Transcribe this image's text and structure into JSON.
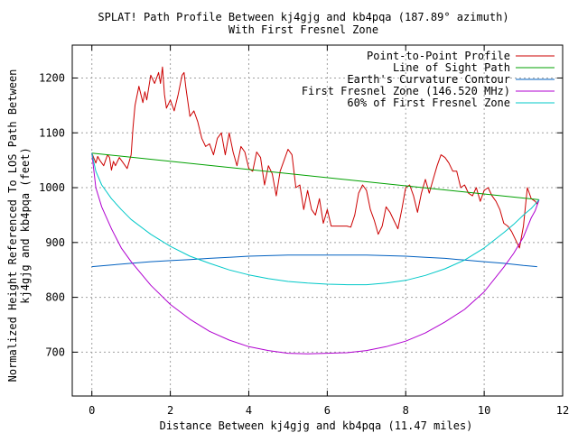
{
  "chart_data": {
    "type": "line",
    "title": "SPLAT! Path Profile Between kj4gjg and kb4pqa (187.89° azimuth)",
    "subtitle": "With First Fresnel Zone",
    "xlabel": "Distance Between kj4gjg and kb4pqa (11.47 miles)",
    "ylabel_line1": "Normalized Height Referenced To LOS Path Between",
    "ylabel_line2": "kj4gjg and kb4pqa (feet)",
    "xlim": [
      -0.5,
      12
    ],
    "ylim": [
      620,
      1260
    ],
    "x_ticks": [
      0,
      2,
      4,
      6,
      8,
      10,
      12
    ],
    "y_ticks": [
      700,
      800,
      900,
      1000,
      1100,
      1200
    ],
    "grid": true,
    "legend_position": "top-right",
    "series": [
      {
        "name": "Point-to-Point Profile",
        "color": "#cc0000",
        "x": [
          0,
          0.1,
          0.15,
          0.2,
          0.3,
          0.4,
          0.45,
          0.5,
          0.55,
          0.6,
          0.7,
          0.8,
          0.9,
          1.0,
          1.05,
          1.1,
          1.2,
          1.3,
          1.35,
          1.4,
          1.5,
          1.6,
          1.7,
          1.75,
          1.8,
          1.85,
          1.9,
          2.0,
          2.1,
          2.2,
          2.3,
          2.35,
          2.4,
          2.5,
          2.6,
          2.7,
          2.8,
          2.9,
          3.0,
          3.1,
          3.2,
          3.3,
          3.4,
          3.5,
          3.6,
          3.7,
          3.8,
          3.9,
          4.0,
          4.1,
          4.2,
          4.3,
          4.4,
          4.5,
          4.6,
          4.7,
          4.8,
          4.9,
          5.0,
          5.1,
          5.2,
          5.3,
          5.4,
          5.5,
          5.6,
          5.7,
          5.8,
          5.9,
          6.0,
          6.1,
          6.2,
          6.3,
          6.4,
          6.5,
          6.6,
          6.7,
          6.8,
          6.9,
          7.0,
          7.1,
          7.2,
          7.3,
          7.4,
          7.5,
          7.6,
          7.7,
          7.8,
          7.9,
          8.0,
          8.1,
          8.2,
          8.3,
          8.4,
          8.5,
          8.6,
          8.7,
          8.8,
          8.9,
          9.0,
          9.1,
          9.2,
          9.3,
          9.4,
          9.5,
          9.6,
          9.7,
          9.8,
          9.9,
          10.0,
          10.1,
          10.2,
          10.3,
          10.4,
          10.5,
          10.6,
          10.7,
          10.8,
          10.9,
          11.0,
          11.1,
          11.2,
          11.3,
          11.35,
          11.4
        ],
        "values": [
          1063,
          1045,
          1057,
          1050,
          1040,
          1060,
          1055,
          1032,
          1048,
          1040,
          1055,
          1045,
          1035,
          1060,
          1110,
          1150,
          1185,
          1155,
          1175,
          1160,
          1205,
          1190,
          1210,
          1190,
          1220,
          1170,
          1145,
          1160,
          1140,
          1170,
          1205,
          1210,
          1180,
          1130,
          1140,
          1120,
          1090,
          1075,
          1080,
          1060,
          1090,
          1100,
          1060,
          1100,
          1065,
          1040,
          1075,
          1065,
          1035,
          1030,
          1065,
          1055,
          1005,
          1040,
          1025,
          985,
          1030,
          1050,
          1070,
          1060,
          1000,
          1005,
          960,
          995,
          960,
          950,
          980,
          935,
          960,
          930,
          930,
          930,
          930,
          930,
          928,
          950,
          990,
          1005,
          995,
          960,
          940,
          915,
          930,
          965,
          955,
          940,
          925,
          960,
          1000,
          1005,
          985,
          955,
          990,
          1015,
          990,
          1015,
          1040,
          1060,
          1055,
          1045,
          1030,
          1030,
          1000,
          1005,
          990,
          985,
          1000,
          975,
          995,
          1000,
          985,
          975,
          960,
          935,
          930,
          920,
          905,
          890,
          930,
          1000,
          980,
          975,
          970,
          978
        ]
      },
      {
        "name": "Line of Sight Path",
        "color": "#00a000",
        "x": [
          0,
          11.4
        ],
        "values": [
          1063,
          978
        ]
      },
      {
        "name": "Earth's Curvature Contour",
        "color": "#0060c0",
        "x": [
          0,
          0.5,
          1.0,
          1.5,
          2.0,
          2.5,
          3.0,
          3.5,
          4.0,
          4.5,
          5.0,
          5.5,
          6.0,
          6.5,
          7.0,
          7.5,
          8.0,
          8.5,
          9.0,
          9.5,
          10.0,
          10.5,
          11.0,
          11.35
        ],
        "values": [
          856,
          859,
          862,
          865,
          867,
          869,
          871,
          873,
          875,
          876,
          877,
          877,
          877,
          877,
          877,
          876,
          875,
          873,
          871,
          868,
          865,
          862,
          858,
          856
        ]
      },
      {
        "name": "First Fresnel Zone (146.520 MHz)",
        "color": "#b000d0",
        "x": [
          0,
          0.1,
          0.25,
          0.5,
          0.75,
          1.0,
          1.5,
          2.0,
          2.5,
          3.0,
          3.5,
          4.0,
          4.5,
          5.0,
          5.5,
          6.0,
          6.5,
          7.0,
          7.5,
          8.0,
          8.5,
          9.0,
          9.5,
          10.0,
          10.5,
          10.75,
          11.0,
          11.2,
          11.3,
          11.4
        ],
        "values": [
          1063,
          1000,
          965,
          925,
          890,
          865,
          822,
          787,
          760,
          738,
          722,
          710,
          703,
          698,
          697,
          698,
          699,
          703,
          710,
          720,
          735,
          755,
          778,
          810,
          855,
          880,
          910,
          945,
          958,
          978
        ]
      },
      {
        "name": "60% of First Fresnel Zone",
        "color": "#00c8c8",
        "x": [
          0,
          0.1,
          0.25,
          0.5,
          0.75,
          1.0,
          1.5,
          2.0,
          2.5,
          3.0,
          3.5,
          4.0,
          4.5,
          5.0,
          5.5,
          6.0,
          6.5,
          7.0,
          7.5,
          8.0,
          8.5,
          9.0,
          9.5,
          10.0,
          10.5,
          10.75,
          11.0,
          11.2,
          11.3,
          11.4
        ],
        "values": [
          1063,
          1030,
          1005,
          980,
          960,
          942,
          915,
          893,
          875,
          862,
          850,
          841,
          834,
          829,
          826,
          824,
          823,
          823,
          826,
          831,
          840,
          852,
          868,
          890,
          918,
          933,
          950,
          962,
          970,
          978
        ]
      }
    ]
  }
}
